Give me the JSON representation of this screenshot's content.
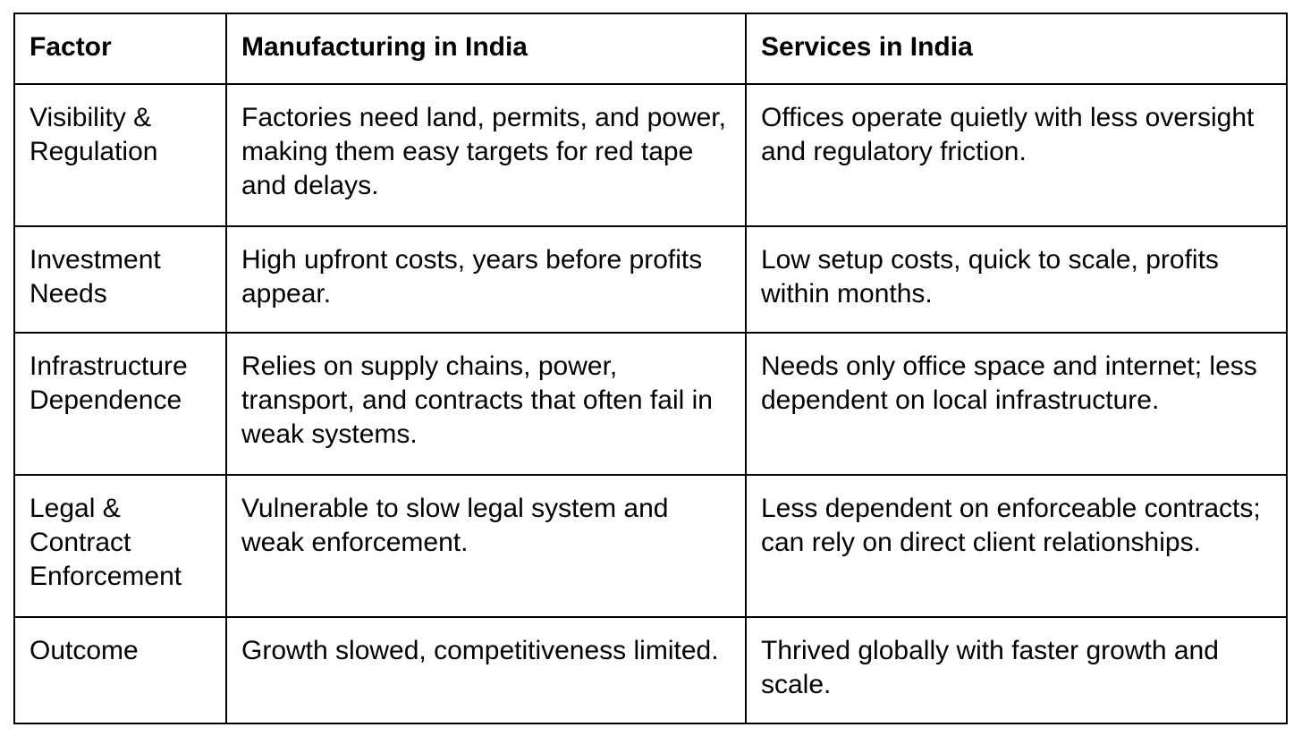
{
  "table": {
    "headers": [
      "Factor",
      "Manufacturing in India",
      "Services in India"
    ],
    "rows": [
      {
        "factor": "Visibility & Regulation",
        "manufacturing": "Factories need land, permits, and power, making them easy targets for red tape and delays.",
        "services": "Offices operate quietly with less oversight and regulatory friction."
      },
      {
        "factor": "Investment Needs",
        "manufacturing": "High upfront costs, years before profits appear.",
        "services": "Low setup costs, quick to scale, profits within months."
      },
      {
        "factor": "Infrastructure Dependence",
        "manufacturing": "Relies on supply chains, power, transport, and contracts that often fail in weak systems.",
        "services": "Needs only office space and internet; less dependent on local infrastructure."
      },
      {
        "factor": "Legal & Contract Enforcement",
        "manufacturing": "Vulnerable to slow legal system and weak enforcement.",
        "services": "Less dependent on enforceable contracts; can rely on direct client relationships."
      },
      {
        "factor": "Outcome",
        "manufacturing": "Growth slowed, competitiveness limited.",
        "services": "Thrived globally with faster growth and scale."
      }
    ]
  }
}
